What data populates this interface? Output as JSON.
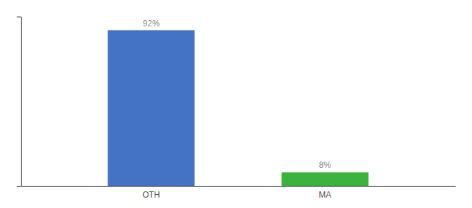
{
  "chart_data": {
    "type": "bar",
    "categories": [
      "OTH",
      "MA"
    ],
    "values": [
      92,
      8
    ],
    "value_labels": [
      "92%",
      "8%"
    ],
    "colors": [
      "#4472c4",
      "#3cb33c"
    ],
    "ylim": [
      0,
      100
    ],
    "yticks": [],
    "data_labels": true,
    "tick_labels": "x"
  }
}
